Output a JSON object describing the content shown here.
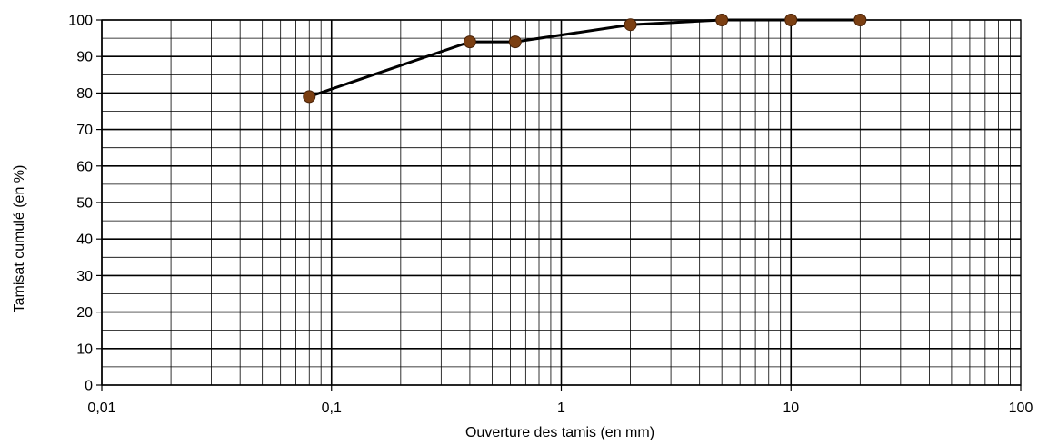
{
  "chart_data": {
    "type": "line",
    "title": "",
    "xlabel": "Ouverture des tamis (en mm)",
    "ylabel": "Tamisat cumulé (en %)",
    "x_scale": "log",
    "xlim": [
      0.01,
      100
    ],
    "ylim": [
      0,
      100
    ],
    "x_ticks": [
      "0,01",
      "0,1",
      "1",
      "10",
      "100"
    ],
    "y_ticks": [
      "0",
      "10",
      "20",
      "30",
      "40",
      "50",
      "60",
      "70",
      "80",
      "90",
      "100"
    ],
    "grid": true,
    "legend": "none",
    "series": [
      {
        "x": [
          0.08,
          0.4,
          0.63,
          2,
          5,
          10,
          20
        ],
        "y": [
          79,
          94,
          94,
          98.7,
          100,
          100,
          100
        ]
      }
    ],
    "colors": {
      "line": "#000000",
      "marker": "#7b3f12",
      "marker_edge": "#4a2308"
    }
  }
}
